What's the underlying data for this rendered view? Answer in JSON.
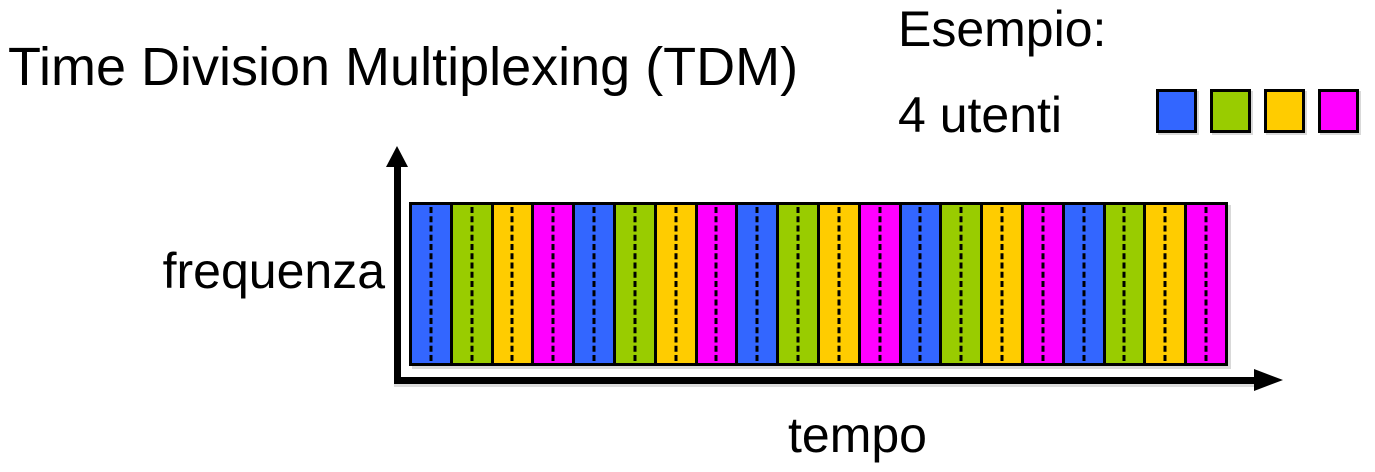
{
  "title": "Time Division Multiplexing (TDM)",
  "example": {
    "line1": "Esempio:",
    "line2": "4 utenti"
  },
  "users": [
    {
      "id": "user-1",
      "color": "#3366FF"
    },
    {
      "id": "user-2",
      "color": "#99CC00"
    },
    {
      "id": "user-3",
      "color": "#FFCC00"
    },
    {
      "id": "user-4",
      "color": "#FF00FF"
    }
  ],
  "diagram": {
    "type": "tdm-timeline",
    "y_axis_label": "frequenza",
    "x_axis_label": "tempo",
    "num_cycles": 5,
    "num_slots": 20,
    "slot_pattern": [
      "user-1",
      "user-2",
      "user-3",
      "user-4"
    ],
    "slot_divider_style": "dashed",
    "outline_color": "#000000",
    "background_color": "#ffffff"
  }
}
